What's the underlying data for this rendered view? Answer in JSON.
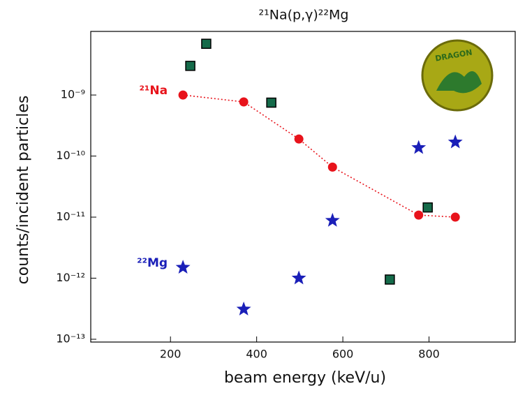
{
  "chart_data": {
    "type": "scatter",
    "title": "²¹Na(p,γ)²²Mg",
    "x_label": "beam energy (keV/u)",
    "y_label": "counts/incident particles",
    "xlim": [
      15,
      1000
    ],
    "xticks": [
      200,
      400,
      600,
      800
    ],
    "ylim": [
      9e-14,
      1.1e-08
    ],
    "log_y": true,
    "yticks": [
      {
        "value": 1e-09,
        "label": "10⁻⁹"
      },
      {
        "value": 1e-10,
        "label": "10⁻¹⁰"
      },
      {
        "value": 1e-11,
        "label": "10⁻¹¹"
      },
      {
        "value": 1e-12,
        "label": "10⁻¹²"
      },
      {
        "value": 1e-13,
        "label": "10⁻¹³"
      }
    ],
    "series": [
      {
        "name": "²¹Na",
        "color": "#e8131b",
        "marker": "circle",
        "line": true,
        "x": [
          229,
          370,
          498,
          576,
          776,
          861
        ],
        "values": [
          1e-09,
          7.7e-10,
          1.9e-10,
          6.6e-11,
          1.08e-11,
          1e-11
        ]
      },
      {
        "name": "²²Mg",
        "color": "#1a1fb8",
        "marker": "star",
        "line": false,
        "x": [
          229,
          370,
          498,
          576,
          776,
          861
        ],
        "values": [
          1.5e-12,
          3.1e-13,
          1e-12,
          8.8e-12,
          1.37e-10,
          1.69e-10
        ]
      },
      {
        "color": "#156b4a",
        "marker": "square",
        "line": false,
        "x": [
          246,
          283,
          434,
          709,
          797
        ],
        "values": [
          3e-09,
          6.9e-09,
          7.5e-10,
          9.5e-13,
          1.44e-11
        ]
      }
    ],
    "logo_text": "DRAGON"
  }
}
